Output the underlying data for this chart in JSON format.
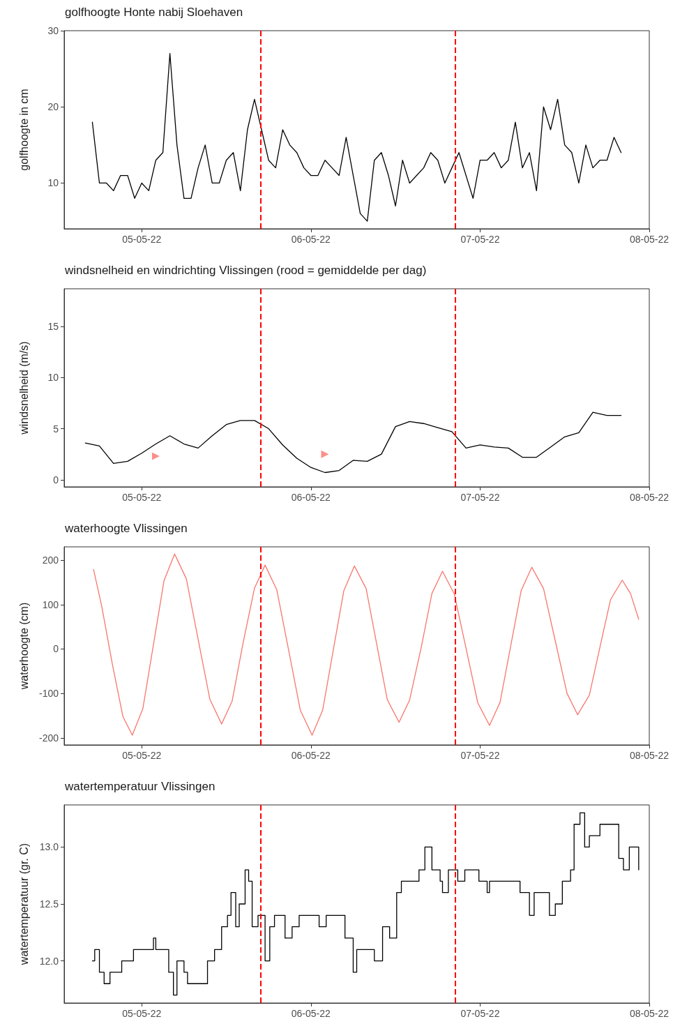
{
  "chart_data": [
    {
      "type": "line",
      "title": "golfhoogte Honte nabij Sloehaven",
      "ylabel": "golfhoogte in cm",
      "grid": false,
      "marker": "none",
      "xlim": [
        "--05-04T13:00",
        "--05-08T00:00"
      ],
      "xticks": [
        {
          "value": "--05-05",
          "label": "05-05-22"
        },
        {
          "value": "--05-06",
          "label": "06-05-22"
        },
        {
          "value": "--05-07",
          "label": "07-05-22"
        },
        {
          "value": "--05-08",
          "label": "08-05-22"
        }
      ],
      "ylim": [
        4,
        30
      ],
      "yticks": [
        10,
        20,
        30
      ],
      "ref_lines": [
        {
          "axis": "x",
          "value": "--05-05T16:50",
          "color": "#ff0000",
          "line_style": "dashed"
        },
        {
          "axis": "x",
          "value": "--05-06T20:30",
          "color": "#ff0000",
          "line_style": "dashed"
        }
      ],
      "series": [
        {
          "color": "#000000",
          "x": [
            "--05-04T17:00",
            "--05-04T18:00",
            "--05-04T19:00",
            "--05-04T20:00",
            "--05-04T21:00",
            "--05-04T22:00",
            "--05-04T23:00",
            "--05-05T00:00",
            "--05-05T01:00",
            "--05-05T02:00",
            "--05-05T03:00",
            "--05-05T04:00",
            "--05-05T05:00",
            "--05-05T06:00",
            "--05-05T07:00",
            "--05-05T08:00",
            "--05-05T09:00",
            "--05-05T10:00",
            "--05-05T11:00",
            "--05-05T12:00",
            "--05-05T13:00",
            "--05-05T14:00",
            "--05-05T15:00",
            "--05-05T16:00",
            "--05-05T17:00",
            "--05-05T18:00",
            "--05-05T19:00",
            "--05-05T20:00",
            "--05-05T21:00",
            "--05-05T22:00",
            "--05-05T23:00",
            "--05-06T00:00",
            "--05-06T01:00",
            "--05-06T02:00",
            "--05-06T03:00",
            "--05-06T04:00",
            "--05-06T05:00",
            "--05-06T06:00",
            "--05-06T07:00",
            "--05-06T08:00",
            "--05-06T09:00",
            "--05-06T10:00",
            "--05-06T11:00",
            "--05-06T12:00",
            "--05-06T13:00",
            "--05-06T14:00",
            "--05-06T15:00",
            "--05-06T16:00",
            "--05-06T17:00",
            "--05-06T18:00",
            "--05-06T19:00",
            "--05-06T20:00",
            "--05-06T21:00",
            "--05-06T22:00",
            "--05-06T23:00",
            "--05-07T00:00",
            "--05-07T01:00",
            "--05-07T02:00",
            "--05-07T03:00",
            "--05-07T04:00",
            "--05-07T05:00",
            "--05-07T06:00",
            "--05-07T07:00",
            "--05-07T08:00",
            "--05-07T09:00",
            "--05-07T10:00",
            "--05-07T11:00",
            "--05-07T12:00",
            "--05-07T13:00",
            "--05-07T14:00",
            "--05-07T15:00",
            "--05-07T16:00",
            "--05-07T17:00",
            "--05-07T18:00",
            "--05-07T19:00",
            "--05-07T20:00"
          ],
          "values": [
            18,
            10,
            10,
            9,
            11,
            11,
            8,
            10,
            9,
            13,
            14,
            27,
            15,
            8,
            8,
            12,
            15,
            10,
            10,
            13,
            14,
            9,
            17,
            21,
            17,
            13,
            12,
            17,
            15,
            14,
            12,
            11,
            11,
            13,
            12,
            11,
            16,
            11,
            6,
            5,
            13,
            14,
            11,
            7,
            13,
            10,
            11,
            12,
            14,
            13,
            10,
            12,
            14,
            11,
            8,
            13,
            13,
            14,
            12,
            13,
            18,
            12,
            14,
            9,
            20,
            17,
            21,
            15,
            14,
            10,
            15,
            12,
            13,
            13,
            16,
            14
          ]
        }
      ]
    },
    {
      "type": "line",
      "title": "windsnelheid en windrichting Vlissingen (rood = gemiddelde per dag)",
      "ylabel": "windsnelheid (m/s)",
      "grid": false,
      "marker": "none",
      "xlim": [
        "--05-04T13:00",
        "--05-08T00:00"
      ],
      "xticks": [
        {
          "value": "--05-05",
          "label": "05-05-22"
        },
        {
          "value": "--05-06",
          "label": "06-05-22"
        },
        {
          "value": "--05-07",
          "label": "07-05-22"
        },
        {
          "value": "--05-08",
          "label": "08-05-22"
        }
      ],
      "ylim": [
        -0.7,
        18.7
      ],
      "yticks": [
        0,
        5,
        10,
        15
      ],
      "ref_lines": [
        {
          "axis": "x",
          "value": "--05-05T16:50",
          "color": "#ff0000",
          "line_style": "dashed"
        },
        {
          "axis": "x",
          "value": "--05-06T20:30",
          "color": "#ff0000",
          "line_style": "dashed"
        }
      ],
      "series": [
        {
          "color": "#000000",
          "x": [
            "--05-04T16:00",
            "--05-04T18:00",
            "--05-04T20:00",
            "--05-04T22:00",
            "--05-05T00:00",
            "--05-05T02:00",
            "--05-05T04:00",
            "--05-05T06:00",
            "--05-05T08:00",
            "--05-05T10:00",
            "--05-05T12:00",
            "--05-05T14:00",
            "--05-05T16:00",
            "--05-05T18:00",
            "--05-05T20:00",
            "--05-05T22:00",
            "--05-06T00:00",
            "--05-06T02:00",
            "--05-06T04:00",
            "--05-06T06:00",
            "--05-06T08:00",
            "--05-06T10:00",
            "--05-06T12:00",
            "--05-06T14:00",
            "--05-06T16:00",
            "--05-06T18:00",
            "--05-06T20:00",
            "--05-06T22:00",
            "--05-07T00:00",
            "--05-07T02:00",
            "--05-07T04:00",
            "--05-07T06:00",
            "--05-07T08:00",
            "--05-07T10:00",
            "--05-07T12:00",
            "--05-07T14:00",
            "--05-07T16:00",
            "--05-07T18:00",
            "--05-07T20:00"
          ],
          "values": [
            3.6,
            3.3,
            1.6,
            1.8,
            2.6,
            3.5,
            4.3,
            3.5,
            3.1,
            4.3,
            5.4,
            5.8,
            5.8,
            5.0,
            3.4,
            2.1,
            1.2,
            0.7,
            0.9,
            1.9,
            1.8,
            2.5,
            5.2,
            5.7,
            5.5,
            5.1,
            4.7,
            3.1,
            3.4,
            3.2,
            3.1,
            2.2,
            2.2,
            3.2,
            4.2,
            4.6,
            6.6,
            6.3,
            6.3
          ]
        },
        {
          "type": "scatter",
          "marker": "triangle",
          "color": "#f8766d",
          "x": [
            "--05-05T02:00",
            "--05-06T02:00"
          ],
          "values": [
            2.3,
            2.5
          ]
        }
      ]
    },
    {
      "type": "line",
      "title": "waterhoogte Vlissingen",
      "ylabel": "waterhoogte (cm)",
      "grid": false,
      "marker": "none",
      "xlim": [
        "--05-04T13:00",
        "--05-08T00:00"
      ],
      "xticks": [
        {
          "value": "--05-05",
          "label": "05-05-22"
        },
        {
          "value": "--05-06",
          "label": "06-05-22"
        },
        {
          "value": "--05-07",
          "label": "07-05-22"
        },
        {
          "value": "--05-08",
          "label": "08-05-22"
        }
      ],
      "ylim": [
        -216,
        230
      ],
      "yticks": [
        -200,
        -100,
        0,
        100,
        200
      ],
      "ref_lines": [
        {
          "axis": "x",
          "value": "--05-05T16:50",
          "color": "#ff0000",
          "line_style": "dashed"
        },
        {
          "axis": "x",
          "value": "--05-06T20:30",
          "color": "#ff0000",
          "line_style": "dashed"
        }
      ],
      "series": [
        {
          "color": "#f8766d",
          "x": [
            "--05-04T17:10",
            "--05-04T18:20",
            "--05-04T19:50",
            "--05-04T21:20",
            "--05-04T22:40",
            "--05-05T00:10",
            "--05-05T01:40",
            "--05-05T03:10",
            "--05-05T04:40",
            "--05-05T06:20",
            "--05-05T08:00",
            "--05-05T09:40",
            "--05-05T11:20",
            "--05-05T12:50",
            "--05-05T14:20",
            "--05-05T16:00",
            "--05-05T17:30",
            "--05-05T19:10",
            "--05-05T20:50",
            "--05-05T22:30",
            "--05-06T00:10",
            "--05-06T01:40",
            "--05-06T03:10",
            "--05-06T04:40",
            "--05-06T06:10",
            "--05-06T07:50",
            "--05-06T09:20",
            "--05-06T10:50",
            "--05-06T12:30",
            "--05-06T14:00",
            "--05-06T15:40",
            "--05-06T17:10",
            "--05-06T18:40",
            "--05-06T20:20",
            "--05-06T22:00",
            "--05-06T23:40",
            "--05-07T01:20",
            "--05-07T02:50",
            "--05-07T04:20",
            "--05-07T05:50",
            "--05-07T07:20",
            "--05-07T09:00",
            "--05-07T10:40",
            "--05-07T12:20",
            "--05-07T13:50",
            "--05-07T15:30",
            "--05-07T17:00",
            "--05-07T18:30",
            "--05-07T20:10",
            "--05-07T21:20",
            "--05-07T22:30"
          ],
          "values": [
            179,
            96,
            -34,
            -152,
            -194,
            -134,
            10,
            154,
            214,
            158,
            22,
            -113,
            -169,
            -117,
            10,
            137,
            189,
            133,
            -2,
            -138,
            -194,
            -138,
            -3,
            131,
            187,
            136,
            11,
            -114,
            -165,
            -115,
            5,
            125,
            175,
            124,
            2,
            -121,
            -172,
            -120,
            6,
            132,
            184,
            136,
            18,
            -100,
            -148,
            -104,
            4,
            111,
            155,
            125,
            67
          ]
        }
      ]
    },
    {
      "type": "step",
      "title": "watertemperatuur Vlissingen",
      "ylabel": "watertemperatuur (gr. C)",
      "grid": false,
      "marker": "none",
      "xlim": [
        "--05-04T13:00",
        "--05-08T00:00"
      ],
      "xticks": [
        {
          "value": "--05-05",
          "label": "05-05-22"
        },
        {
          "value": "--05-06",
          "label": "06-05-22"
        },
        {
          "value": "--05-07",
          "label": "07-05-22"
        },
        {
          "value": "--05-08",
          "label": "08-05-22"
        }
      ],
      "ylim": [
        11.63,
        13.37
      ],
      "yticks": [
        {
          "value": 12,
          "label": "12.0"
        },
        {
          "value": 12.5,
          "label": "12.5"
        },
        {
          "value": 13,
          "label": "13.0"
        }
      ],
      "ref_lines": [
        {
          "axis": "x",
          "value": "--05-05T16:50",
          "color": "#ff0000",
          "line_style": "dashed"
        },
        {
          "axis": "x",
          "value": "--05-06T20:30",
          "color": "#ff0000",
          "line_style": "dashed"
        }
      ],
      "series": [
        {
          "color": "#000000",
          "x": [
            "--05-04T17:00",
            "--05-04T17:20",
            "--05-04T18:00",
            "--05-04T18:40",
            "--05-04T19:30",
            "--05-04T21:10",
            "--05-04T22:50",
            "--05-05T01:40",
            "--05-05T02:00",
            "--05-05T03:50",
            "--05-05T04:30",
            "--05-05T05:00",
            "--05-05T06:00",
            "--05-05T06:30",
            "--05-05T09:20",
            "--05-05T10:20",
            "--05-05T11:20",
            "--05-05T12:10",
            "--05-05T12:40",
            "--05-05T13:20",
            "--05-05T13:50",
            "--05-05T14:40",
            "--05-05T15:10",
            "--05-05T15:40",
            "--05-05T16:30",
            "--05-05T17:30",
            "--05-05T18:10",
            "--05-05T18:50",
            "--05-05T20:20",
            "--05-05T21:20",
            "--05-05T22:20",
            "--05-06T01:10",
            "--05-06T02:10",
            "--05-06T04:20",
            "--05-06T04:50",
            "--05-06T06:00",
            "--05-06T06:30",
            "--05-06T09:00",
            "--05-06T10:10",
            "--05-06T11:10",
            "--05-06T12:10",
            "--05-06T12:50",
            "--05-06T15:20",
            "--05-06T16:10",
            "--05-06T17:10",
            "--05-06T18:20",
            "--05-06T18:40",
            "--05-06T19:30",
            "--05-06T20:50",
            "--05-06T21:50",
            "--05-06T23:50",
            "--05-07T01:00",
            "--05-07T01:20",
            "--05-07T05:40",
            "--05-07T07:00",
            "--05-07T07:40",
            "--05-07T09:50",
            "--05-07T10:40",
            "--05-07T11:40",
            "--05-07T12:50",
            "--05-07T13:20",
            "--05-07T14:10",
            "--05-07T14:50",
            "--05-07T15:30",
            "--05-07T17:00",
            "--05-07T19:40",
            "--05-07T20:20",
            "--05-07T21:10",
            "--05-07T22:10",
            "--05-07T22:30"
          ],
          "values": [
            12.0,
            12.1,
            11.9,
            11.8,
            11.9,
            12.0,
            12.1,
            12.2,
            12.1,
            11.9,
            11.7,
            12.0,
            11.9,
            11.8,
            12.0,
            12.1,
            12.3,
            12.4,
            12.6,
            12.3,
            12.5,
            12.8,
            12.7,
            12.3,
            12.4,
            12.0,
            12.3,
            12.4,
            12.2,
            12.3,
            12.4,
            12.3,
            12.4,
            12.4,
            12.2,
            11.9,
            12.1,
            12.0,
            12.3,
            12.2,
            12.6,
            12.7,
            12.8,
            13.0,
            12.8,
            12.7,
            12.6,
            12.8,
            12.7,
            12.8,
            12.7,
            12.6,
            12.7,
            12.6,
            12.4,
            12.6,
            12.4,
            12.5,
            12.7,
            12.8,
            13.2,
            13.3,
            13.0,
            13.1,
            13.2,
            12.9,
            12.8,
            13.0,
            13.0,
            12.8
          ]
        }
      ]
    }
  ]
}
